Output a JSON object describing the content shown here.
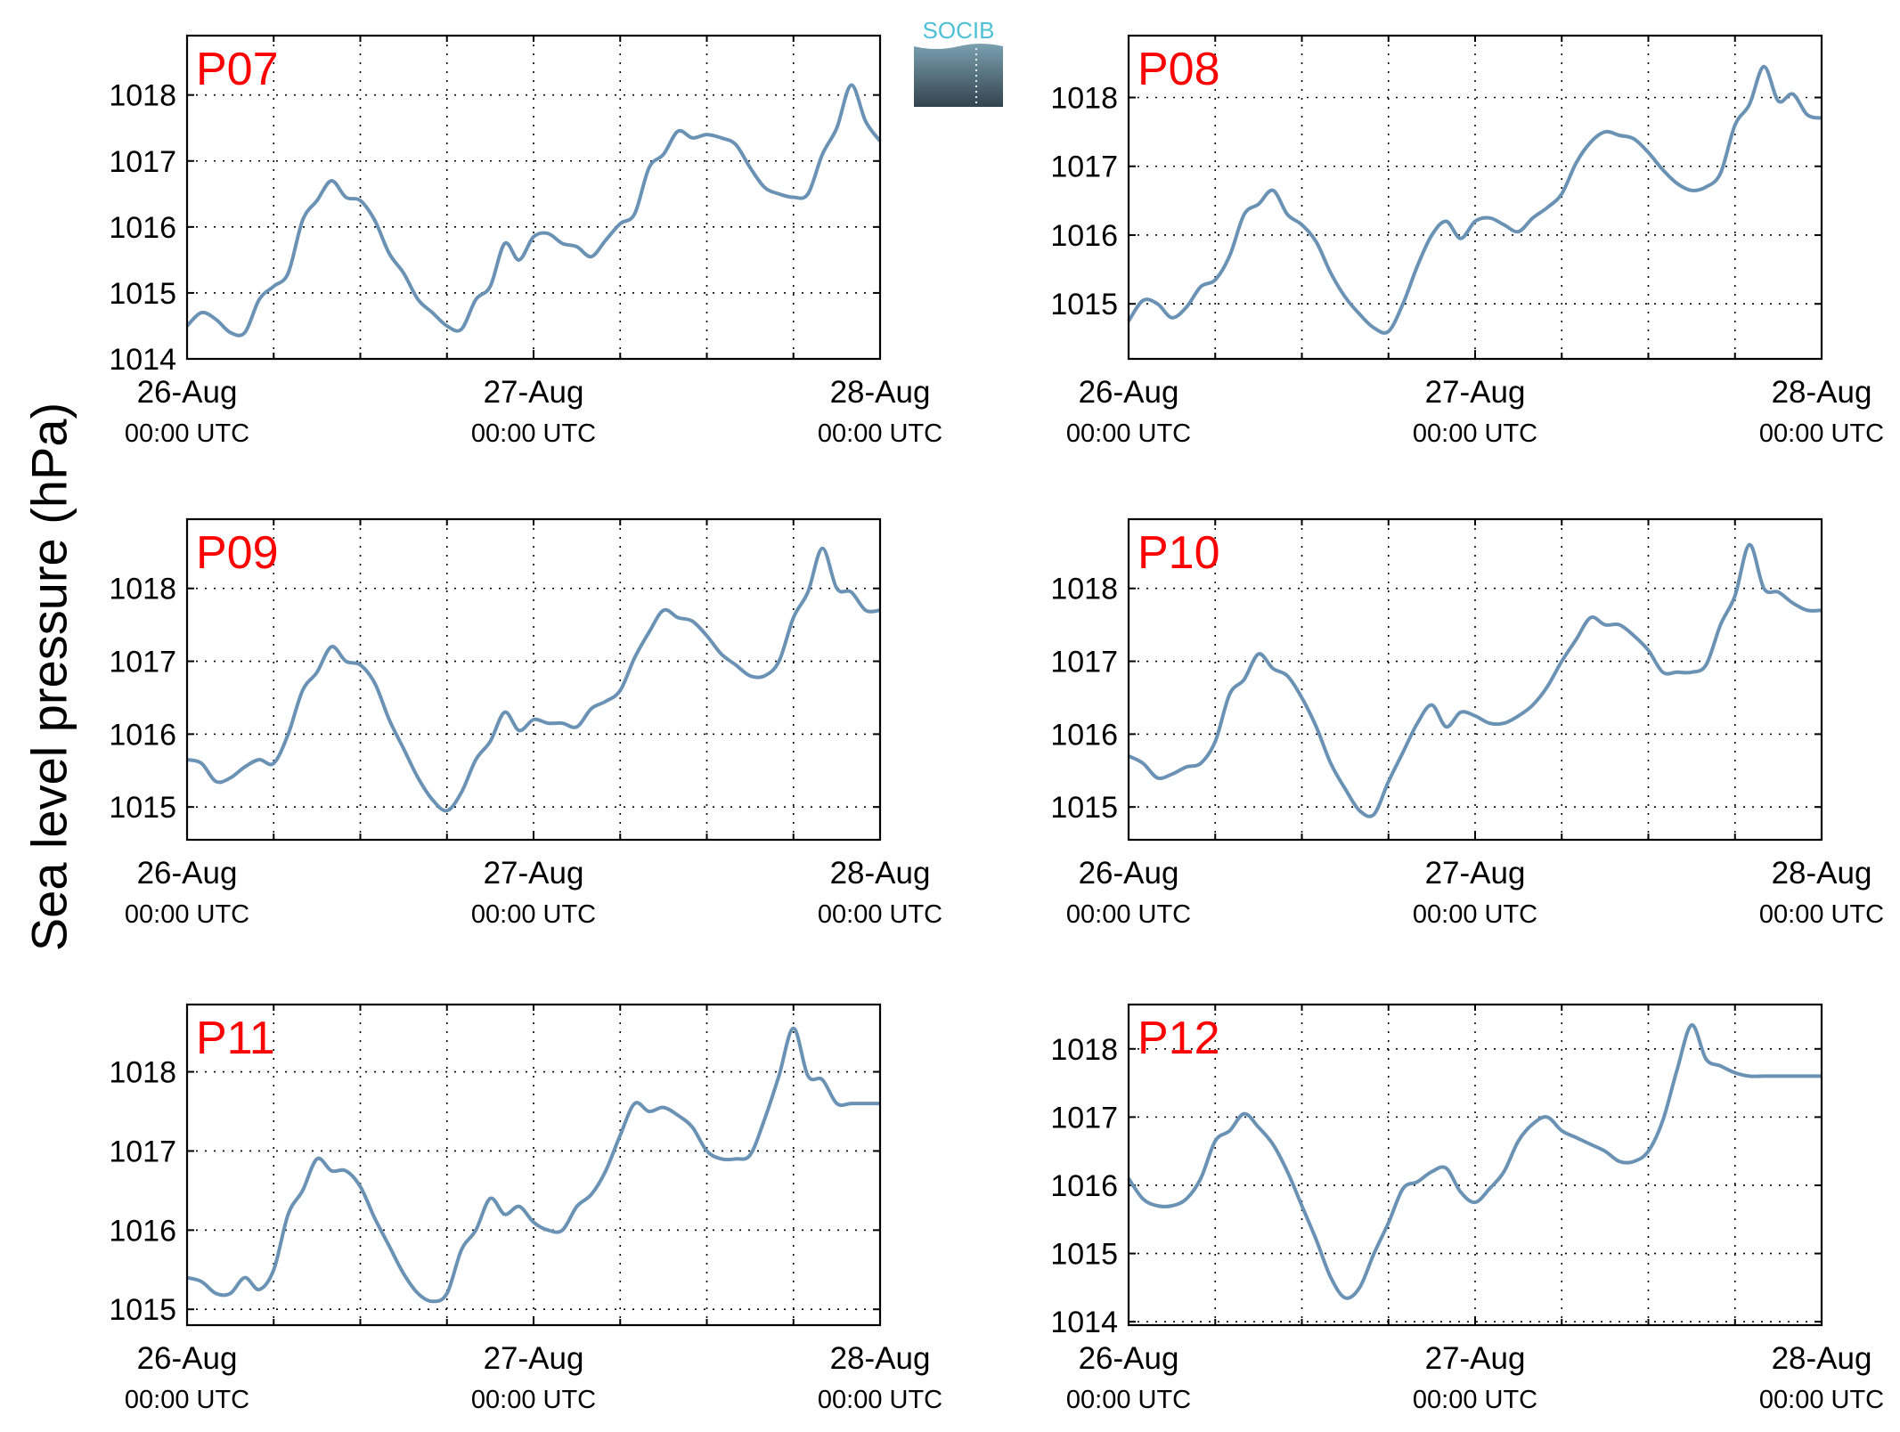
{
  "figure": {
    "ylabel": "Sea level pressure (hPa)",
    "logo_text": "SOCIB",
    "line_color": "#6a92b4",
    "station_label_color": "#ff0000"
  },
  "x_ticks": [
    {
      "date": "26-Aug",
      "time": "00:00 UTC",
      "hours": 0
    },
    {
      "date": "27-Aug",
      "time": "00:00 UTC",
      "hours": 24
    },
    {
      "date": "28-Aug",
      "time": "00:00 UTC",
      "hours": 48
    }
  ],
  "chart_data": [
    {
      "type": "line",
      "station": "P07",
      "grid": true,
      "xlim_hours": [
        0,
        48
      ],
      "ylim": [
        1014,
        1018.9
      ],
      "yticks": [
        1014,
        1015,
        1016,
        1017,
        1018
      ],
      "x_hours": [
        0,
        1,
        2,
        3,
        4,
        5,
        6,
        7,
        8,
        9,
        10,
        11,
        12,
        13,
        14,
        15,
        16,
        17,
        18,
        19,
        20,
        21,
        22,
        23,
        24,
        25,
        26,
        27,
        28,
        29,
        30,
        31,
        32,
        33,
        34,
        35,
        36,
        37,
        38,
        39,
        40,
        41,
        42,
        43,
        44,
        45,
        46,
        47,
        48
      ],
      "values": [
        1014.5,
        1014.7,
        1014.6,
        1014.4,
        1014.4,
        1014.9,
        1015.1,
        1015.3,
        1016.1,
        1016.4,
        1016.7,
        1016.45,
        1016.4,
        1016.1,
        1015.6,
        1015.3,
        1014.9,
        1014.7,
        1014.5,
        1014.45,
        1014.9,
        1015.1,
        1015.75,
        1015.5,
        1015.85,
        1015.9,
        1015.75,
        1015.7,
        1015.55,
        1015.8,
        1016.05,
        1016.2,
        1016.9,
        1017.1,
        1017.45,
        1017.35,
        1017.4,
        1017.35,
        1017.25,
        1016.9,
        1016.6,
        1016.5,
        1016.45,
        1016.5,
        1017.1,
        1017.5,
        1018.15,
        1017.6,
        1017.3
      ]
    },
    {
      "type": "line",
      "station": "P08",
      "grid": true,
      "xlim_hours": [
        0,
        48
      ],
      "ylim": [
        1014.2,
        1018.9
      ],
      "yticks": [
        1015,
        1016,
        1017,
        1018
      ],
      "x_hours": [
        0,
        1,
        2,
        3,
        4,
        5,
        6,
        7,
        8,
        9,
        10,
        11,
        12,
        13,
        14,
        15,
        16,
        17,
        18,
        19,
        20,
        21,
        22,
        23,
        24,
        25,
        26,
        27,
        28,
        29,
        30,
        31,
        32,
        33,
        34,
        35,
        36,
        37,
        38,
        39,
        40,
        41,
        42,
        43,
        44,
        45,
        46,
        47,
        48
      ],
      "values": [
        1014.75,
        1015.05,
        1015.0,
        1014.8,
        1014.95,
        1015.25,
        1015.35,
        1015.7,
        1016.3,
        1016.45,
        1016.65,
        1016.3,
        1016.15,
        1015.9,
        1015.45,
        1015.1,
        1014.85,
        1014.65,
        1014.6,
        1015.0,
        1015.55,
        1016.0,
        1016.2,
        1015.95,
        1016.2,
        1016.25,
        1016.15,
        1016.05,
        1016.25,
        1016.4,
        1016.6,
        1017.05,
        1017.35,
        1017.5,
        1017.45,
        1017.4,
        1017.2,
        1016.95,
        1016.75,
        1016.65,
        1016.7,
        1016.9,
        1017.6,
        1017.9,
        1018.45,
        1017.95,
        1018.05,
        1017.75,
        1017.7
      ]
    },
    {
      "type": "line",
      "station": "P09",
      "grid": true,
      "xlim_hours": [
        0,
        48
      ],
      "ylim": [
        1014.55,
        1018.95
      ],
      "yticks": [
        1015,
        1016,
        1017,
        1018
      ],
      "x_hours": [
        0,
        1,
        2,
        3,
        4,
        5,
        6,
        7,
        8,
        9,
        10,
        11,
        12,
        13,
        14,
        15,
        16,
        17,
        18,
        19,
        20,
        21,
        22,
        23,
        24,
        25,
        26,
        27,
        28,
        29,
        30,
        31,
        32,
        33,
        34,
        35,
        36,
        37,
        38,
        39,
        40,
        41,
        42,
        43,
        44,
        45,
        46,
        47,
        48
      ],
      "values": [
        1015.65,
        1015.6,
        1015.35,
        1015.4,
        1015.55,
        1015.65,
        1015.6,
        1016.0,
        1016.6,
        1016.85,
        1017.2,
        1017.0,
        1016.95,
        1016.7,
        1016.2,
        1015.8,
        1015.4,
        1015.1,
        1014.95,
        1015.2,
        1015.65,
        1015.9,
        1016.3,
        1016.05,
        1016.2,
        1016.15,
        1016.15,
        1016.1,
        1016.35,
        1016.45,
        1016.6,
        1017.05,
        1017.4,
        1017.7,
        1017.6,
        1017.55,
        1017.35,
        1017.1,
        1016.95,
        1016.8,
        1016.8,
        1017.0,
        1017.6,
        1017.95,
        1018.55,
        1018.0,
        1017.95,
        1017.7,
        1017.7
      ]
    },
    {
      "type": "line",
      "station": "P10",
      "grid": true,
      "xlim_hours": [
        0,
        48
      ],
      "ylim": [
        1014.55,
        1018.95
      ],
      "yticks": [
        1015,
        1016,
        1017,
        1018
      ],
      "x_hours": [
        0,
        1,
        2,
        3,
        4,
        5,
        6,
        7,
        8,
        9,
        10,
        11,
        12,
        13,
        14,
        15,
        16,
        17,
        18,
        19,
        20,
        21,
        22,
        23,
        24,
        25,
        26,
        27,
        28,
        29,
        30,
        31,
        32,
        33,
        34,
        35,
        36,
        37,
        38,
        39,
        40,
        41,
        42,
        43,
        44,
        45,
        46,
        47,
        48
      ],
      "values": [
        1015.7,
        1015.6,
        1015.4,
        1015.45,
        1015.55,
        1015.6,
        1015.9,
        1016.55,
        1016.75,
        1017.1,
        1016.9,
        1016.8,
        1016.5,
        1016.1,
        1015.6,
        1015.25,
        1014.95,
        1014.9,
        1015.35,
        1015.75,
        1016.15,
        1016.4,
        1016.1,
        1016.3,
        1016.25,
        1016.15,
        1016.15,
        1016.25,
        1016.4,
        1016.65,
        1017.0,
        1017.3,
        1017.6,
        1017.5,
        1017.5,
        1017.35,
        1017.15,
        1016.85,
        1016.85,
        1016.85,
        1016.95,
        1017.5,
        1017.9,
        1018.6,
        1018.0,
        1017.95,
        1017.8,
        1017.7,
        1017.7
      ]
    },
    {
      "type": "line",
      "station": "P11",
      "grid": true,
      "xlim_hours": [
        0,
        48
      ],
      "ylim": [
        1014.8,
        1018.85
      ],
      "yticks": [
        1015,
        1016,
        1017,
        1018
      ],
      "x_hours": [
        0,
        1,
        2,
        3,
        4,
        5,
        6,
        7,
        8,
        9,
        10,
        11,
        12,
        13,
        14,
        15,
        16,
        17,
        18,
        19,
        20,
        21,
        22,
        23,
        24,
        25,
        26,
        27,
        28,
        29,
        30,
        31,
        32,
        33,
        34,
        35,
        36,
        37,
        38,
        39,
        40,
        41,
        42,
        43,
        44,
        45,
        46,
        47,
        48
      ],
      "values": [
        1015.4,
        1015.35,
        1015.2,
        1015.2,
        1015.4,
        1015.25,
        1015.5,
        1016.2,
        1016.5,
        1016.9,
        1016.75,
        1016.75,
        1016.55,
        1016.15,
        1015.8,
        1015.45,
        1015.2,
        1015.1,
        1015.2,
        1015.75,
        1016.0,
        1016.4,
        1016.2,
        1016.3,
        1016.1,
        1016.0,
        1016.0,
        1016.3,
        1016.45,
        1016.75,
        1017.2,
        1017.6,
        1017.5,
        1017.55,
        1017.45,
        1017.3,
        1017.0,
        1016.9,
        1016.9,
        1016.95,
        1017.4,
        1017.95,
        1018.55,
        1017.95,
        1017.9,
        1017.6,
        1017.6,
        1017.6,
        1017.6
      ]
    },
    {
      "type": "line",
      "station": "P12",
      "grid": true,
      "xlim_hours": [
        0,
        48
      ],
      "ylim": [
        1013.95,
        1018.65
      ],
      "yticks": [
        1014,
        1015,
        1016,
        1017,
        1018
      ],
      "x_hours": [
        0,
        1,
        2,
        3,
        4,
        5,
        6,
        7,
        8,
        9,
        10,
        11,
        12,
        13,
        14,
        15,
        16,
        17,
        18,
        19,
        20,
        21,
        22,
        23,
        24,
        25,
        26,
        27,
        28,
        29,
        30,
        31,
        32,
        33,
        34,
        35,
        36,
        37,
        38,
        39,
        40,
        41,
        42,
        43,
        44,
        45,
        46,
        47,
        48
      ],
      "values": [
        1016.1,
        1015.8,
        1015.7,
        1015.7,
        1015.8,
        1016.1,
        1016.65,
        1016.8,
        1017.05,
        1016.85,
        1016.6,
        1016.2,
        1015.7,
        1015.2,
        1014.65,
        1014.35,
        1014.5,
        1015.0,
        1015.45,
        1015.95,
        1016.05,
        1016.2,
        1016.25,
        1015.9,
        1015.75,
        1015.95,
        1016.2,
        1016.65,
        1016.9,
        1017.0,
        1016.8,
        1016.7,
        1016.6,
        1016.5,
        1016.35,
        1016.35,
        1016.5,
        1016.95,
        1017.7,
        1018.35,
        1017.85,
        1017.75,
        1017.65,
        1017.6,
        1017.6,
        1017.6,
        1017.6,
        1017.6,
        1017.6
      ]
    }
  ]
}
